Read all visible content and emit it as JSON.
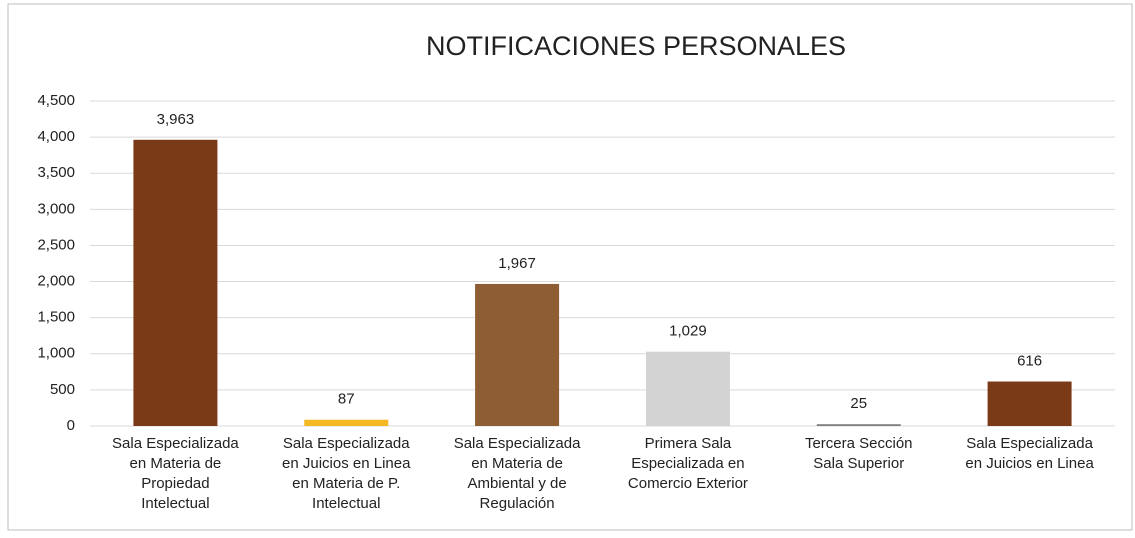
{
  "chart_data": {
    "type": "bar",
    "title": "NOTIFICACIONES PERSONALES",
    "categories": [
      [
        "Sala Especializada",
        "en Materia de",
        "Propiedad",
        "Intelectual"
      ],
      [
        "Sala Especializada",
        "en Juicios en Linea",
        "en Materia de P.",
        "Intelectual"
      ],
      [
        "Sala Especializada",
        "en Materia de",
        "Ambiental y de",
        "Regulación"
      ],
      [
        "Primera Sala",
        "Especializada en",
        "Comercio Exterior"
      ],
      [
        "Tercera Sección",
        "Sala Superior"
      ],
      [
        "Sala Especializada",
        "en Juicios en Linea"
      ]
    ],
    "values": [
      3963,
      87,
      1967,
      1029,
      25,
      616
    ],
    "value_labels": [
      "3,963",
      "87",
      "1,967",
      "1,029",
      "25",
      "616"
    ],
    "colors": [
      "#7b3a17",
      "#f4b824",
      "#8f5d34",
      "#d3d3d3",
      "#7f7f7f",
      "#7b3a17"
    ],
    "ylim": [
      0,
      4500
    ],
    "yticks": [
      0,
      500,
      {
        "value": 1000,
        "label": "1,000"
      },
      {
        "value": 1500,
        "label": "1,500"
      },
      {
        "value": 2000,
        "label": "2,000"
      },
      {
        "value": 2500,
        "label": "2,500"
      },
      {
        "value": 3000,
        "label": "3,000"
      },
      {
        "value": 3500,
        "label": "3,500"
      },
      {
        "value": 4000,
        "label": "4,000"
      },
      {
        "value": 4500,
        "label": "4,500"
      }
    ],
    "grid": true
  }
}
